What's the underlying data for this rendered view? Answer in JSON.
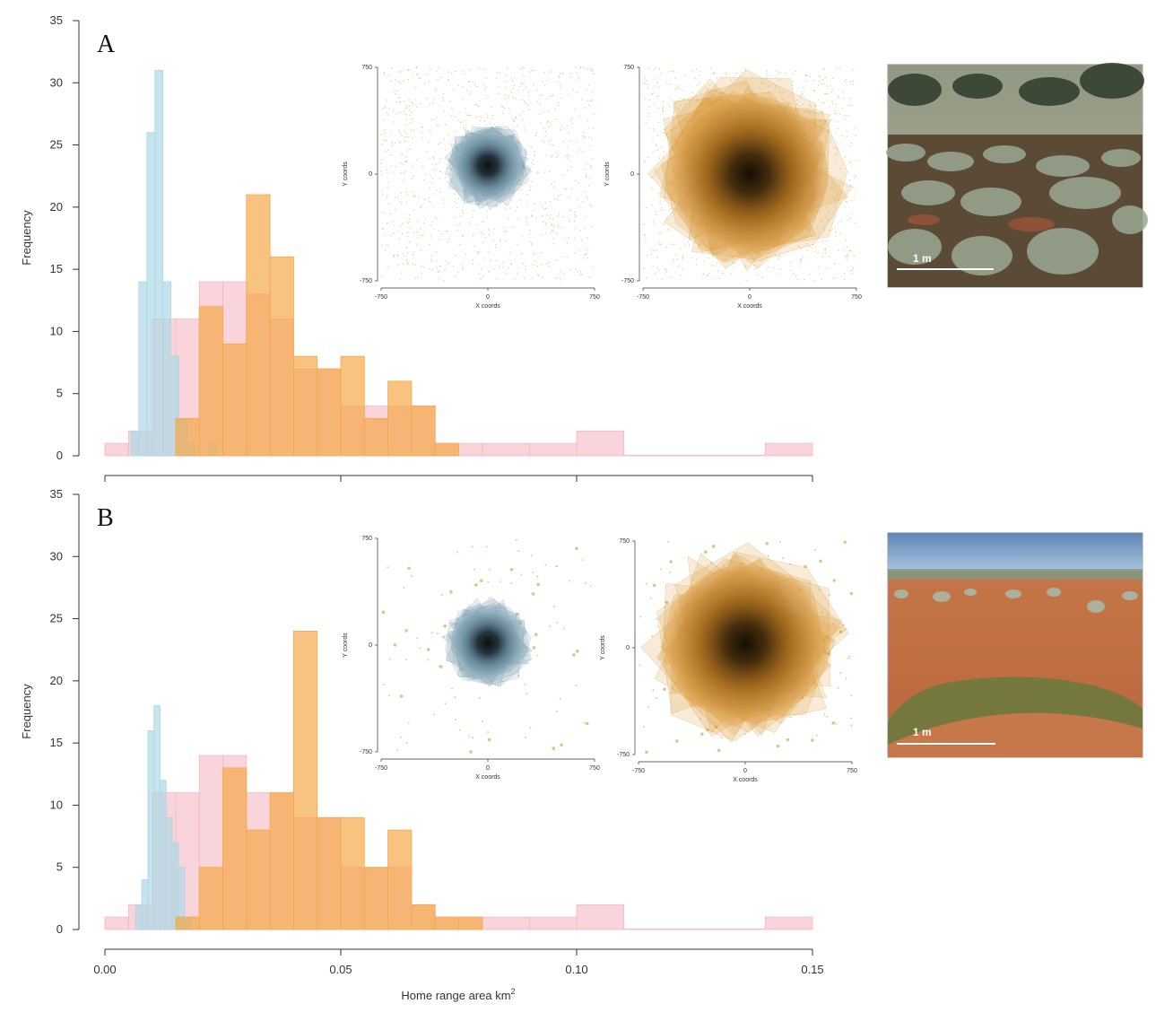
{
  "chart_data": [
    {
      "type": "bar",
      "panel": "A",
      "ylabel": "Frequency",
      "ylim": [
        0,
        35
      ],
      "yticks": [
        0,
        5,
        10,
        15,
        20,
        25,
        30,
        35
      ],
      "xlim": [
        0.0,
        0.15
      ],
      "grid": false,
      "series": [
        {
          "color": "#f7b7c3",
          "bins": [
            [
              0.0,
              0.005,
              1
            ],
            [
              0.005,
              0.01,
              2
            ],
            [
              0.01,
              0.015,
              11
            ],
            [
              0.015,
              0.02,
              11
            ],
            [
              0.02,
              0.025,
              14
            ],
            [
              0.025,
              0.03,
              14
            ],
            [
              0.03,
              0.035,
              13
            ],
            [
              0.035,
              0.04,
              11
            ],
            [
              0.04,
              0.045,
              7
            ],
            [
              0.045,
              0.05,
              7
            ],
            [
              0.05,
              0.055,
              4
            ],
            [
              0.055,
              0.06,
              4
            ],
            [
              0.06,
              0.065,
              4
            ],
            [
              0.065,
              0.07,
              4
            ],
            [
              0.07,
              0.08,
              1
            ],
            [
              0.08,
              0.09,
              1
            ],
            [
              0.09,
              0.1,
              1
            ],
            [
              0.1,
              0.11,
              2
            ],
            [
              0.11,
              0.14,
              0
            ],
            [
              0.14,
              0.15,
              1
            ]
          ]
        },
        {
          "color": "#add8e6",
          "bins": [
            [
              0.0055,
              0.0072,
              2
            ],
            [
              0.0072,
              0.0089,
              14
            ],
            [
              0.0089,
              0.0106,
              26
            ],
            [
              0.0106,
              0.0123,
              31
            ],
            [
              0.0123,
              0.014,
              14
            ],
            [
              0.014,
              0.0157,
              8
            ],
            [
              0.0157,
              0.0174,
              3
            ],
            [
              0.0174,
              0.0191,
              1
            ],
            [
              0.022,
              0.0237,
              1
            ]
          ]
        },
        {
          "color": "#f5a84a",
          "bins": [
            [
              0.015,
              0.02,
              3
            ],
            [
              0.02,
              0.025,
              12
            ],
            [
              0.025,
              0.03,
              9
            ],
            [
              0.03,
              0.035,
              21
            ],
            [
              0.035,
              0.04,
              16
            ],
            [
              0.04,
              0.045,
              8
            ],
            [
              0.045,
              0.05,
              7
            ],
            [
              0.05,
              0.055,
              8
            ],
            [
              0.055,
              0.06,
              3
            ],
            [
              0.06,
              0.065,
              6
            ],
            [
              0.065,
              0.07,
              4
            ],
            [
              0.07,
              0.075,
              1
            ]
          ]
        }
      ]
    },
    {
      "type": "bar",
      "panel": "B",
      "ylabel": "Frequency",
      "xlabel": "Home range area km",
      "xlabel_sup": "2",
      "ylim": [
        0,
        35
      ],
      "yticks": [
        0,
        5,
        10,
        15,
        20,
        25,
        30,
        35
      ],
      "xlim": [
        0.0,
        0.15
      ],
      "xticks": [
        "0.00",
        "0.05",
        "0.10",
        "0.15"
      ],
      "grid": false,
      "series": [
        {
          "color": "#f7b7c3",
          "bins": [
            [
              0.0,
              0.005,
              1
            ],
            [
              0.005,
              0.01,
              2
            ],
            [
              0.01,
              0.015,
              11
            ],
            [
              0.015,
              0.02,
              11
            ],
            [
              0.02,
              0.025,
              14
            ],
            [
              0.025,
              0.03,
              14
            ],
            [
              0.03,
              0.035,
              11
            ],
            [
              0.035,
              0.04,
              11
            ],
            [
              0.04,
              0.045,
              9
            ],
            [
              0.045,
              0.05,
              9
            ],
            [
              0.05,
              0.055,
              5
            ],
            [
              0.055,
              0.06,
              5
            ],
            [
              0.06,
              0.065,
              5
            ],
            [
              0.065,
              0.07,
              2
            ],
            [
              0.07,
              0.08,
              1
            ],
            [
              0.08,
              0.09,
              1
            ],
            [
              0.09,
              0.1,
              1
            ],
            [
              0.1,
              0.11,
              2
            ],
            [
              0.11,
              0.14,
              0
            ],
            [
              0.14,
              0.15,
              1
            ]
          ]
        },
        {
          "color": "#add8e6",
          "bins": [
            [
              0.0065,
              0.0078,
              2
            ],
            [
              0.0078,
              0.0091,
              4
            ],
            [
              0.0091,
              0.0104,
              16
            ],
            [
              0.0104,
              0.0117,
              18
            ],
            [
              0.0117,
              0.013,
              12
            ],
            [
              0.013,
              0.0143,
              9
            ],
            [
              0.0143,
              0.0156,
              7
            ],
            [
              0.0156,
              0.0169,
              5
            ],
            [
              0.0169,
              0.0182,
              1
            ]
          ]
        },
        {
          "color": "#f5a84a",
          "bins": [
            [
              0.015,
              0.02,
              1
            ],
            [
              0.02,
              0.025,
              5
            ],
            [
              0.025,
              0.03,
              13
            ],
            [
              0.03,
              0.035,
              8
            ],
            [
              0.035,
              0.04,
              11
            ],
            [
              0.04,
              0.045,
              24
            ],
            [
              0.045,
              0.05,
              9
            ],
            [
              0.05,
              0.055,
              9
            ],
            [
              0.055,
              0.06,
              5
            ],
            [
              0.06,
              0.065,
              8
            ],
            [
              0.065,
              0.07,
              2
            ],
            [
              0.07,
              0.075,
              1
            ],
            [
              0.075,
              0.08,
              1
            ]
          ]
        }
      ]
    }
  ],
  "insets": {
    "tick_labels": [
      "-750",
      "0",
      "750"
    ],
    "xlabel": "X coords",
    "ylabel": "Y coords",
    "blue_color": "#7fa3b3",
    "orange_color": "#d9942e",
    "dot_color": "#b7c76a"
  },
  "photos": {
    "scale_label": "1 m"
  }
}
